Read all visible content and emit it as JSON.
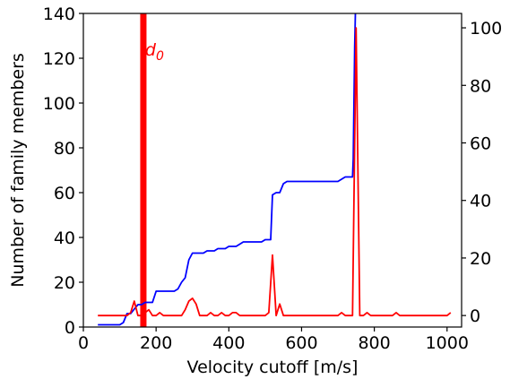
{
  "chart_data": {
    "type": "line",
    "xlabel": "Velocity cutoff [m/s]",
    "ylabel": "Number of family members",
    "xlim": [
      0,
      1040
    ],
    "ylim": [
      0,
      140
    ],
    "y2lim": [
      -4,
      105
    ],
    "xticks": [
      0,
      200,
      400,
      600,
      800,
      1000
    ],
    "yticks": [
      0,
      20,
      40,
      60,
      80,
      100,
      120,
      140
    ],
    "y2ticks": [
      0,
      20,
      40,
      60,
      80,
      100
    ],
    "grid": false,
    "annotations": [
      {
        "text": "d",
        "subscript": "0",
        "x": 160,
        "color": "#ff0000"
      }
    ],
    "vlines": [
      {
        "x": 165,
        "color": "#ff0000"
      }
    ],
    "series": [
      {
        "axis": "left",
        "color": "#0000ff",
        "x": [
          40,
          60,
          80,
          100,
          110,
          120,
          130,
          140,
          150,
          160,
          170,
          180,
          190,
          200,
          210,
          220,
          230,
          240,
          250,
          260,
          270,
          280,
          290,
          300,
          310,
          320,
          330,
          340,
          350,
          360,
          370,
          380,
          390,
          400,
          410,
          420,
          430,
          440,
          450,
          460,
          470,
          480,
          490,
          500,
          510,
          515,
          520,
          530,
          540,
          550,
          560,
          570,
          580,
          600,
          650,
          700,
          710,
          720,
          740,
          742,
          744,
          746,
          748,
          750
        ],
        "y": [
          1,
          1,
          1,
          1,
          2,
          6,
          6,
          8,
          10,
          10,
          11,
          11,
          11,
          16,
          16,
          16,
          16,
          16,
          16,
          17,
          20,
          22,
          30,
          33,
          33,
          33,
          33,
          34,
          34,
          34,
          35,
          35,
          35,
          36,
          36,
          36,
          37,
          38,
          38,
          38,
          38,
          38,
          38,
          39,
          39,
          39,
          59,
          60,
          60,
          64,
          65,
          65,
          65,
          65,
          65,
          65,
          66,
          67,
          67,
          75,
          100,
          125,
          140,
          145
        ]
      },
      {
        "axis": "right",
        "color": "#ff0000",
        "x": [
          40,
          60,
          80,
          100,
          120,
          130,
          140,
          150,
          160,
          170,
          180,
          190,
          200,
          210,
          220,
          230,
          240,
          250,
          260,
          270,
          280,
          290,
          300,
          310,
          320,
          330,
          340,
          350,
          360,
          370,
          380,
          390,
          400,
          410,
          420,
          430,
          440,
          450,
          460,
          470,
          480,
          490,
          500,
          510,
          520,
          530,
          540,
          550,
          560,
          600,
          650,
          700,
          710,
          720,
          730,
          740,
          750,
          760,
          770,
          780,
          790,
          800,
          850,
          860,
          870,
          900,
          950,
          1000,
          1010
        ],
        "y": [
          0,
          0,
          0,
          0,
          0,
          1,
          5,
          0,
          0,
          1,
          2,
          0,
          0,
          1,
          0,
          0,
          0,
          0,
          0,
          0,
          2,
          5,
          6,
          4,
          0,
          0,
          0,
          1,
          0,
          0,
          1,
          0,
          0,
          1,
          1,
          0,
          0,
          0,
          0,
          0,
          0,
          0,
          0,
          1,
          21,
          0,
          4,
          0,
          0,
          0,
          0,
          0,
          1,
          0,
          0,
          0,
          100,
          0,
          0,
          1,
          0,
          0,
          0,
          1,
          0,
          0,
          0,
          0,
          1
        ]
      }
    ]
  }
}
